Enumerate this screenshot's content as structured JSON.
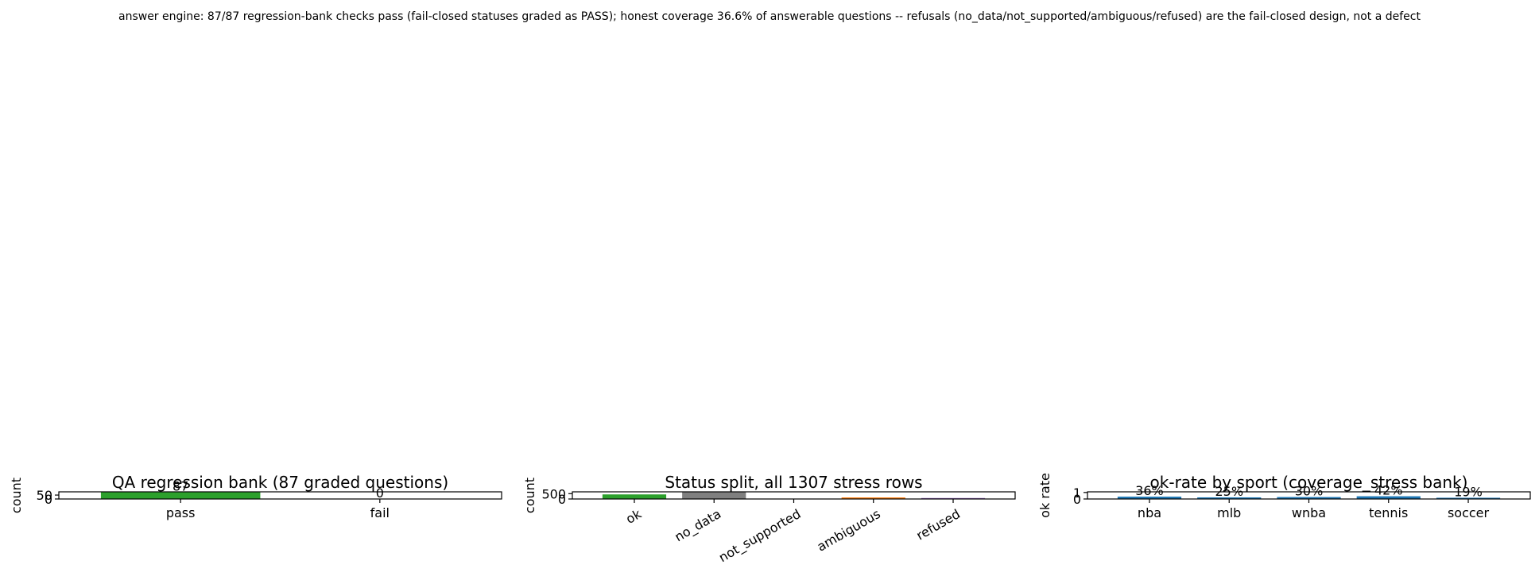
{
  "figure": {
    "suptitle": "answer engine: 87/87 regression-bank checks pass (fail-closed statuses graded as PASS); honest coverage 36.6% of answerable questions -- refusals (no_data/not_supported/ambiguous/refused) are the fail-closed design, not a defect"
  },
  "chart_data": [
    {
      "type": "bar",
      "title": "QA regression bank (87 graded questions)",
      "xlabel": "",
      "ylabel": "count",
      "categories": [
        "pass",
        "fail"
      ],
      "values": [
        87,
        0
      ],
      "data_labels": [
        "87",
        "0"
      ],
      "colors": [
        "#2ca02c",
        "#d62728"
      ],
      "ylim": [
        0,
        91.35
      ],
      "yticks": [
        0,
        50
      ],
      "ytick_labels": [
        "0",
        "50"
      ],
      "xtick_rotation": 0,
      "grid": false
    },
    {
      "type": "bar",
      "title": "Status split, all 1307 stress rows",
      "xlabel": "",
      "ylabel": "count",
      "categories": [
        "ok",
        "no_data",
        "not_supported",
        "ambiguous",
        "refused"
      ],
      "values": [
        430,
        640,
        2,
        145,
        90
      ],
      "colors": [
        "#2ca02c",
        "#7f7f7f",
        "#8c564b",
        "#ff7f0e",
        "#9467bd"
      ],
      "ylim": [
        0,
        672
      ],
      "yticks": [
        0,
        500
      ],
      "ytick_labels": [
        "0",
        "500"
      ],
      "xtick_rotation": -30,
      "grid": false
    },
    {
      "type": "bar",
      "title": "ok-rate by sport (coverage_stress bank)",
      "xlabel": "",
      "ylabel": "ok rate",
      "categories": [
        "nba",
        "mlb",
        "wnba",
        "tennis",
        "soccer"
      ],
      "values": [
        0.36,
        0.25,
        0.3,
        0.42,
        0.19
      ],
      "data_labels": [
        "36%",
        "25%",
        "30%",
        "42%",
        "19%"
      ],
      "colors": [
        "#1f77b4",
        "#1f77b4",
        "#1f77b4",
        "#1f77b4",
        "#1f77b4"
      ],
      "ylim": [
        0,
        1.1
      ],
      "yticks": [
        0,
        1
      ],
      "ytick_labels": [
        "0",
        "1"
      ],
      "xtick_rotation": 0,
      "grid": false
    }
  ]
}
